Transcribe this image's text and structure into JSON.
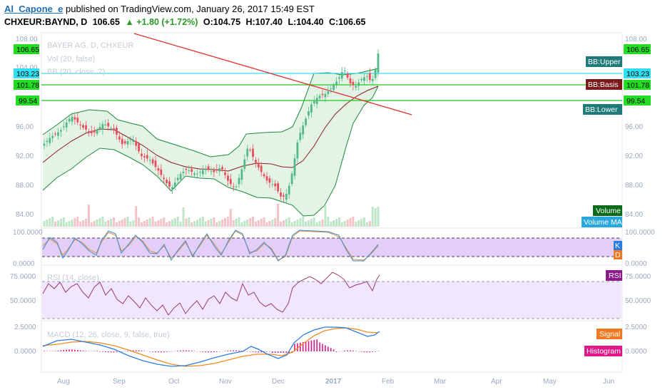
{
  "header": {
    "author": "Al_Capone_e",
    "published": " published on TradingView.com, January 26, 2017 15:49 EST",
    "symbol": "CHXEUR:BAYND, D",
    "last": "106.65",
    "change": "▲ +1.80 (+1.72%)",
    "ohlc": {
      "o": "O:104.75",
      "h": "H:107.40",
      "l": "L:104.40",
      "c": "C:106.65"
    }
  },
  "panes": {
    "main": {
      "legend": [
        "BAYER AG, D, CHXEUR",
        "Vol (20, false)",
        "BB (20, close, 2)"
      ],
      "yticks": [
        "108.00",
        "104.00",
        "100.00",
        "96.00",
        "92.00",
        "88.00",
        "84.00"
      ],
      "yticks_left": [
        "108.00",
        "104.00",
        "96.00",
        "92.00",
        "88.00",
        "84.00"
      ],
      "price_tags": [
        "106.65",
        "103.23",
        "101.78",
        "99.54"
      ],
      "labels": {
        "bb_upper": "BB:Upper",
        "bb_basis": "BB:Basis",
        "bb_lower": "BB:Lower",
        "volume": "Volume",
        "volume_ma": "Volume MA"
      }
    },
    "stoch": {
      "ticks": [
        "100.0000",
        "0.0000"
      ],
      "k": "K",
      "d": "D"
    },
    "rsi": {
      "legend": "RSI (14, close)",
      "ticks": [
        "75.0000",
        "50.0000"
      ],
      "label": "RSI"
    },
    "macd": {
      "legend": "MACD (12, 26, close, 9, false, true)",
      "ticks": [
        "2.5000",
        "0.0000"
      ],
      "signal": "Signal",
      "histogram": "Histogram"
    }
  },
  "xaxis": [
    "Aug",
    "Sep",
    "Oct",
    "Nov",
    "Dec",
    "2017",
    "Feb",
    "Mar",
    "Apr",
    "May",
    "Jun"
  ],
  "colors": {
    "up": "#53b987",
    "down": "#eb4d5c",
    "bb_fill": "#e8f5ea",
    "bb_line": "#1a8a3a",
    "basis": "#8b1a1a",
    "trend": "#e03030",
    "hline": "#00dd00",
    "cyan": "#30e0f0",
    "stoch_bg": "#e3cef8",
    "rsi_bg": "#f0e6ff"
  },
  "chart_data": [
    {
      "type": "candlestick",
      "title": "BAYER AG, D, CHXEUR",
      "ylim": [
        82.5,
        108
      ],
      "key_levels": [
        106.65,
        103.23,
        101.78,
        99.54
      ],
      "x": [
        "Aug",
        "Sep",
        "Oct",
        "Nov",
        "Dec",
        "2017",
        "Feb"
      ],
      "close_approx": [
        95.5,
        97.0,
        93.0,
        91.0,
        91.5,
        89.5,
        87.0,
        90.0,
        97.0,
        99.5,
        101.0,
        101.8,
        106.65
      ]
    },
    {
      "type": "line",
      "title": "RSI (14, close)",
      "ylim": [
        25,
        85
      ],
      "values": [
        52,
        55,
        48,
        42,
        38,
        40,
        45,
        47,
        52,
        50,
        44,
        70,
        76,
        68,
        72,
        78
      ]
    },
    {
      "type": "line",
      "title": "MACD (12, 26, close, 9, false, true)",
      "series": [
        {
          "name": "Signal",
          "values": [
            0.4,
            0.5,
            0.3,
            -0.4,
            -1.0,
            -1.2,
            -0.8,
            -0.5,
            0.3,
            1.2,
            2.0,
            1.8,
            1.9
          ]
        }
      ]
    }
  ]
}
